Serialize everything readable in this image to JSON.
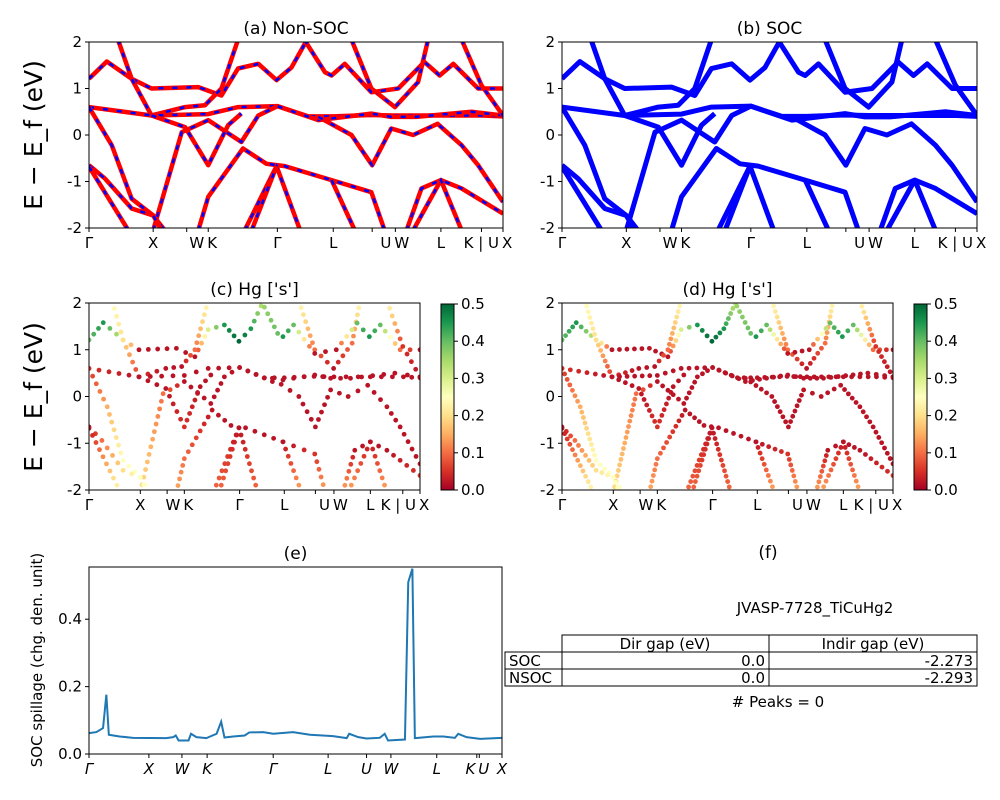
{
  "figure": {
    "ylabel_band": "E − E_f (eV)",
    "info_title": "JVASP-7728_TiCuHg2",
    "peaks_text": "# Peaks = 0",
    "panel_f_title": "(f)"
  },
  "table": {
    "headers": [
      "",
      "Dir gap (eV)",
      "Indir gap (eV)"
    ],
    "rows": [
      {
        "label": "SOC",
        "dir": "0.0",
        "indir": "-2.273"
      },
      {
        "label": "NSOC",
        "dir": "0.0",
        "indir": "-2.293"
      }
    ]
  },
  "colors": {
    "nonsoc_line": "#ff0000",
    "nonsoc_dash": "#0000ff",
    "soc_line": "#0000ff",
    "spillage_line": "#1f77b4",
    "colormap": "RdYlGn"
  },
  "chart_data": [
    {
      "id": "a",
      "type": "line",
      "title": "(a) Non-SOC",
      "ylim": [
        -2,
        2
      ],
      "yticks": [
        -2,
        -1,
        0,
        1,
        2
      ],
      "xticks": [
        {
          "k": 0,
          "label": "Γ"
        },
        {
          "k": 15.5,
          "label": "X"
        },
        {
          "k": 23.6,
          "label": "W"
        },
        {
          "k": 28.8,
          "label": "K"
        },
        {
          "k": 45.5,
          "label": "Γ"
        },
        {
          "k": 59,
          "label": "L"
        },
        {
          "k": 68.4,
          "label": "U"
        },
        {
          "k": 74,
          "label": "W"
        },
        {
          "k": 85,
          "label": "L"
        },
        {
          "k": 94.8,
          "label": "K | U"
        },
        {
          "k": 100,
          "label": "X"
        }
      ]
    },
    {
      "id": "b",
      "type": "line",
      "title": "(b) SOC",
      "ylim": [
        -2,
        2
      ],
      "yticks": [
        -2,
        -1,
        0,
        1,
        2
      ]
    },
    {
      "id": "c",
      "type": "scatter",
      "title": "(c)  Hg ['s']",
      "ylim": [
        -2,
        2
      ],
      "yticks": [
        -2,
        -1,
        0,
        1,
        2
      ],
      "colorbar_ticks": [
        "0.0",
        "0.1",
        "0.2",
        "0.3",
        "0.4",
        "0.5"
      ],
      "clim": [
        0,
        0.5
      ]
    },
    {
      "id": "d",
      "type": "scatter",
      "title": "(d) Hg ['s']",
      "ylim": [
        -2,
        2
      ],
      "yticks": [
        -2,
        -1,
        0,
        1,
        2
      ],
      "colorbar_ticks": [
        "0.0",
        "0.1",
        "0.2",
        "0.3",
        "0.4",
        "0.5"
      ],
      "clim": [
        0,
        0.5
      ]
    },
    {
      "id": "e",
      "type": "line",
      "title": "(e)",
      "ylabel": "SOC spillage (chg. den. unit)",
      "ylim": [
        0,
        0.555
      ],
      "yticks": [
        "0.0",
        "0.2",
        "0.4"
      ],
      "xticks": [
        {
          "k": 0,
          "label": "Γ"
        },
        {
          "k": 14.5,
          "label": "X"
        },
        {
          "k": 22.5,
          "label": "W"
        },
        {
          "k": 28.6,
          "label": "K"
        },
        {
          "k": 44.6,
          "label": "Γ"
        },
        {
          "k": 57.9,
          "label": "L"
        },
        {
          "k": 67.2,
          "label": "U"
        },
        {
          "k": 73.1,
          "label": "W"
        },
        {
          "k": 84.2,
          "label": "L"
        },
        {
          "k": 93.9,
          "label": "K"
        },
        {
          "k": 94.5,
          "label": "U"
        },
        {
          "k": 100,
          "label": "X"
        }
      ],
      "points": [
        [
          0,
          0.062
        ],
        [
          1.8,
          0.065
        ],
        [
          3.4,
          0.077
        ],
        [
          4.2,
          0.176
        ],
        [
          4.8,
          0.057
        ],
        [
          7.4,
          0.052
        ],
        [
          10.7,
          0.048
        ],
        [
          18.7,
          0.047
        ],
        [
          20.4,
          0.05
        ],
        [
          21,
          0.055
        ],
        [
          21.7,
          0.04
        ],
        [
          24.1,
          0.04
        ],
        [
          24.7,
          0.06
        ],
        [
          26,
          0.05
        ],
        [
          28.4,
          0.047
        ],
        [
          30.9,
          0.06
        ],
        [
          32,
          0.096
        ],
        [
          32.8,
          0.049
        ],
        [
          34.9,
          0.052
        ],
        [
          37.7,
          0.055
        ],
        [
          38.8,
          0.064
        ],
        [
          42.2,
          0.065
        ],
        [
          44.6,
          0.06
        ],
        [
          49.4,
          0.065
        ],
        [
          53.5,
          0.057
        ],
        [
          59.1,
          0.053
        ],
        [
          62.4,
          0.047
        ],
        [
          63,
          0.06
        ],
        [
          65.2,
          0.05
        ],
        [
          67.2,
          0.046
        ],
        [
          70.4,
          0.048
        ],
        [
          71.6,
          0.06
        ],
        [
          72.4,
          0.04
        ],
        [
          76.5,
          0.043
        ],
        [
          77.3,
          0.51
        ],
        [
          78.3,
          0.55
        ],
        [
          78.9,
          0.047
        ],
        [
          83.4,
          0.052
        ],
        [
          85.8,
          0.052
        ],
        [
          88.6,
          0.048
        ],
        [
          89.4,
          0.06
        ],
        [
          91.4,
          0.05
        ],
        [
          94.7,
          0.045
        ],
        [
          100,
          0.048
        ]
      ]
    }
  ],
  "bands": [
    {
      "pts": [
        [
          0,
          1.21
        ],
        [
          4.3,
          1.58
        ],
        [
          10.3,
          1.21
        ],
        [
          15.1,
          1.0
        ],
        [
          26.4,
          1.03
        ],
        [
          32,
          0.85
        ],
        [
          36,
          1.43
        ],
        [
          40.9,
          1.53
        ],
        [
          45.3,
          1.18
        ],
        [
          48.9,
          1.45
        ],
        [
          53,
          2.1
        ]
      ],
      "w": [
        0.4,
        0.45,
        0.3,
        0.02,
        0.02,
        0.02,
        0.3,
        0.45,
        0.5,
        0.45,
        0.3
      ]
    },
    {
      "pts": [
        [
          7,
          2.05
        ],
        [
          10.3,
          1.21
        ],
        [
          15.1,
          0.42
        ],
        [
          23.2,
          0.6
        ],
        [
          28,
          0.64
        ],
        [
          32,
          1.0
        ],
        [
          36,
          2.05
        ]
      ],
      "w": [
        0.25,
        0.2,
        0.05,
        0.02,
        0.02,
        0.1,
        0.25
      ]
    },
    {
      "pts": [
        [
          0,
          0.6
        ],
        [
          15.1,
          0.42
        ],
        [
          28.8,
          0.45
        ],
        [
          36,
          0.6
        ],
        [
          45.5,
          0.62
        ],
        [
          53,
          0.4
        ],
        [
          59,
          0.4
        ],
        [
          68,
          0.43
        ],
        [
          74,
          0.42
        ],
        [
          85,
          0.42
        ],
        [
          95,
          0.42
        ],
        [
          100,
          0.4
        ]
      ],
      "w": [
        0.05,
        0.02,
        0.02,
        0.02,
        0.02,
        0.02,
        0.02,
        0.02,
        0.02,
        0.02,
        0.02,
        0.02
      ]
    },
    {
      "pts": [
        [
          0,
          0.6
        ],
        [
          5.5,
          -0.22
        ],
        [
          10.3,
          -1.37
        ],
        [
          15.5,
          -1.73
        ],
        [
          18.3,
          -2.05
        ]
      ],
      "w": [
        0.05,
        0.15,
        0.25,
        0.25,
        0.25
      ]
    },
    {
      "pts": [
        [
          15.5,
          -2.05
        ],
        [
          22.4,
          0.06
        ],
        [
          28.8,
          0.32
        ],
        [
          36.8,
          -0.15
        ],
        [
          40.9,
          0.42
        ],
        [
          45.5,
          0.62
        ],
        [
          55.4,
          0.32
        ],
        [
          61.8,
          0.39
        ],
        [
          68.2,
          0.46
        ],
        [
          73,
          0.39
        ],
        [
          79,
          0.39
        ],
        [
          92.4,
          0.5
        ],
        [
          100,
          0.42
        ]
      ],
      "w": [
        0.2,
        0.1,
        0.02,
        0.02,
        0.02,
        0.02,
        0.02,
        0.02,
        0.02,
        0.02,
        0.02,
        0.02,
        0.02
      ]
    },
    {
      "pts": [
        [
          15.1,
          0.42
        ],
        [
          23.2,
          0.17
        ],
        [
          28.8,
          -0.65
        ],
        [
          33.6,
          0.21
        ],
        [
          36.8,
          0.46
        ]
      ],
      "w": [
        0.02,
        0.02,
        0.05,
        0.02,
        0.02
      ]
    },
    {
      "pts": [
        [
          26.4,
          -2.05
        ],
        [
          28.8,
          -1.33
        ],
        [
          37.2,
          -0.29
        ],
        [
          42.9,
          -0.62
        ],
        [
          47.3,
          -0.67
        ],
        [
          58.6,
          -0.97
        ],
        [
          68.2,
          -1.23
        ],
        [
          71.4,
          -2.05
        ]
      ],
      "w": [
        0.15,
        0.1,
        0.02,
        0.02,
        0.02,
        0.02,
        0.05,
        0.15
      ]
    },
    {
      "pts": [
        [
          37.6,
          -2.05
        ],
        [
          45.3,
          -0.67
        ],
        [
          51,
          -2.05
        ]
      ],
      "w": [
        0.1,
        0.02,
        0.1
      ]
    },
    {
      "pts": [
        [
          39.3,
          -2.05
        ],
        [
          45.3,
          -0.67
        ]
      ],
      "w": [
        0.1,
        0.02
      ]
    },
    {
      "pts": [
        [
          58.6,
          -0.97
        ],
        [
          64.2,
          -2.05
        ]
      ],
      "w": [
        0.02,
        0.15
      ]
    },
    {
      "pts": [
        [
          76.7,
          -2.05
        ],
        [
          80.3,
          -1.15
        ],
        [
          85,
          -0.97
        ],
        [
          90,
          -1.15
        ],
        [
          100,
          -1.69
        ]
      ],
      "w": [
        0.15,
        0.02,
        0.02,
        0.02,
        0.05
      ]
    },
    {
      "pts": [
        [
          78.3,
          -2.05
        ],
        [
          85,
          -0.97
        ],
        [
          90,
          -2.05
        ]
      ],
      "w": [
        0.15,
        0.02,
        0.15
      ]
    },
    {
      "pts": [
        [
          63.4,
          2.05
        ],
        [
          68.2,
          1.0
        ],
        [
          73.9,
          0.6
        ],
        [
          79.5,
          1.14
        ],
        [
          81.9,
          2.05
        ]
      ],
      "w": [
        0.25,
        0.1,
        0.02,
        0.1,
        0.25
      ]
    },
    {
      "pts": [
        [
          52,
          2.05
        ],
        [
          57,
          1.35
        ],
        [
          58.6,
          1.28
        ],
        [
          61.8,
          1.53
        ],
        [
          68.2,
          0.92
        ],
        [
          74.7,
          1.0
        ],
        [
          81,
          1.57
        ],
        [
          84.7,
          1.28
        ],
        [
          88,
          1.53
        ],
        [
          94,
          1.0
        ],
        [
          100,
          1.0
        ]
      ],
      "w": [
        0.35,
        0.4,
        0.45,
        0.4,
        0.02,
        0.02,
        0.4,
        0.45,
        0.4,
        0.1,
        0.02
      ]
    },
    {
      "pts": [
        [
          90,
          2.05
        ],
        [
          94.8,
          1.07
        ],
        [
          100,
          0.42
        ]
      ],
      "w": [
        0.25,
        0.05,
        0.02
      ]
    },
    {
      "pts": [
        [
          55.4,
          0.39
        ],
        [
          63.4,
          0.0
        ],
        [
          68.4,
          -0.65
        ],
        [
          73,
          0.14
        ],
        [
          78.3,
          0.0
        ],
        [
          84.2,
          0.24
        ],
        [
          90,
          -0.22
        ],
        [
          94,
          -0.65
        ],
        [
          100,
          -1.44
        ]
      ],
      "w": [
        0.02,
        0.02,
        0.02,
        0.02,
        0.02,
        0.02,
        0.02,
        0.02,
        0.02
      ]
    },
    {
      "pts": [
        [
          0,
          -0.65
        ],
        [
          3.9,
          -0.94
        ],
        [
          10.3,
          -1.58
        ],
        [
          15.5,
          -1.73
        ],
        [
          17.5,
          -2.05
        ]
      ],
      "w": [
        0.02,
        0.1,
        0.2,
        0.25,
        0.25
      ]
    },
    {
      "pts": [
        [
          0,
          -0.68
        ],
        [
          9.5,
          -2.05
        ]
      ],
      "w": [
        0.02,
        0.25
      ]
    }
  ]
}
